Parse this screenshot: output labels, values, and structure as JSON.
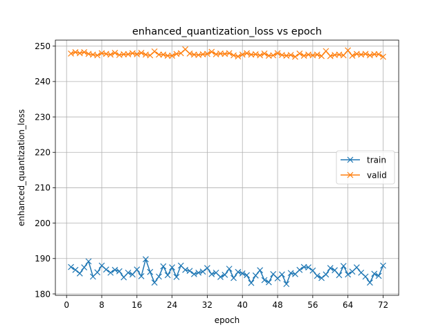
{
  "chart_data": {
    "type": "line",
    "title": "enhanced_quantization_loss vs epoch",
    "xlabel": "epoch",
    "ylabel": "enhanced_quantization_loss",
    "xlim": [
      -2.55,
      75.55
    ],
    "ylim": [
      179.6,
      251.7
    ],
    "xticks": [
      0,
      8,
      16,
      24,
      32,
      40,
      48,
      56,
      64,
      72
    ],
    "yticks": [
      180,
      190,
      200,
      210,
      220,
      230,
      240,
      250
    ],
    "grid": true,
    "legend_position": "center-right",
    "marker": "x",
    "x": [
      1,
      2,
      3,
      4,
      5,
      6,
      7,
      8,
      9,
      10,
      11,
      12,
      13,
      14,
      15,
      16,
      17,
      18,
      19,
      20,
      21,
      22,
      23,
      24,
      25,
      26,
      27,
      28,
      29,
      30,
      31,
      32,
      33,
      34,
      35,
      36,
      37,
      38,
      39,
      40,
      41,
      42,
      43,
      44,
      45,
      46,
      47,
      48,
      49,
      50,
      51,
      52,
      53,
      54,
      55,
      56,
      57,
      58,
      59,
      60,
      61,
      62,
      63,
      64,
      65,
      66,
      67,
      68,
      69,
      70,
      71,
      72
    ],
    "series": [
      {
        "name": "train",
        "color": "#1f77b4",
        "values": [
          187.6,
          186.8,
          185.8,
          187.5,
          189.2,
          184.9,
          186.1,
          188.0,
          186.9,
          186.0,
          186.8,
          186.4,
          184.7,
          186.0,
          185.5,
          186.9,
          185.0,
          189.8,
          186.2,
          183.2,
          184.9,
          187.8,
          185.3,
          187.5,
          184.8,
          188.0,
          186.8,
          186.5,
          185.6,
          186.0,
          186.3,
          187.3,
          185.6,
          186.0,
          184.8,
          185.4,
          187.1,
          184.5,
          186.2,
          185.8,
          185.3,
          183.1,
          185.2,
          186.7,
          183.9,
          183.3,
          185.6,
          184.4,
          185.5,
          182.8,
          185.9,
          185.6,
          186.8,
          187.6,
          187.5,
          186.6,
          185.1,
          184.5,
          185.5,
          187.3,
          186.7,
          185.3,
          187.9,
          185.5,
          186.3,
          187.5,
          186.0,
          184.9,
          183.2,
          185.7,
          185.1,
          188.0
        ]
      },
      {
        "name": "valid",
        "color": "#ff7f0e",
        "values": [
          247.9,
          248.3,
          248.0,
          248.3,
          247.8,
          247.6,
          247.4,
          248.0,
          247.8,
          247.6,
          248.1,
          247.5,
          247.7,
          247.7,
          248.0,
          247.7,
          248.1,
          247.6,
          247.4,
          248.5,
          247.6,
          247.6,
          247.3,
          247.3,
          247.8,
          248.0,
          249.1,
          247.9,
          247.6,
          247.5,
          247.7,
          247.8,
          248.4,
          247.7,
          247.9,
          247.8,
          248.0,
          247.4,
          247.1,
          247.6,
          248.0,
          247.6,
          247.7,
          247.4,
          247.9,
          247.3,
          247.4,
          248.0,
          247.5,
          247.3,
          247.5,
          247.0,
          247.9,
          247.3,
          247.6,
          247.4,
          247.6,
          247.2,
          248.6,
          247.2,
          247.5,
          247.6,
          247.4,
          248.8,
          247.3,
          247.8,
          247.6,
          247.8,
          247.4,
          247.7,
          247.7,
          247.0
        ]
      }
    ]
  }
}
